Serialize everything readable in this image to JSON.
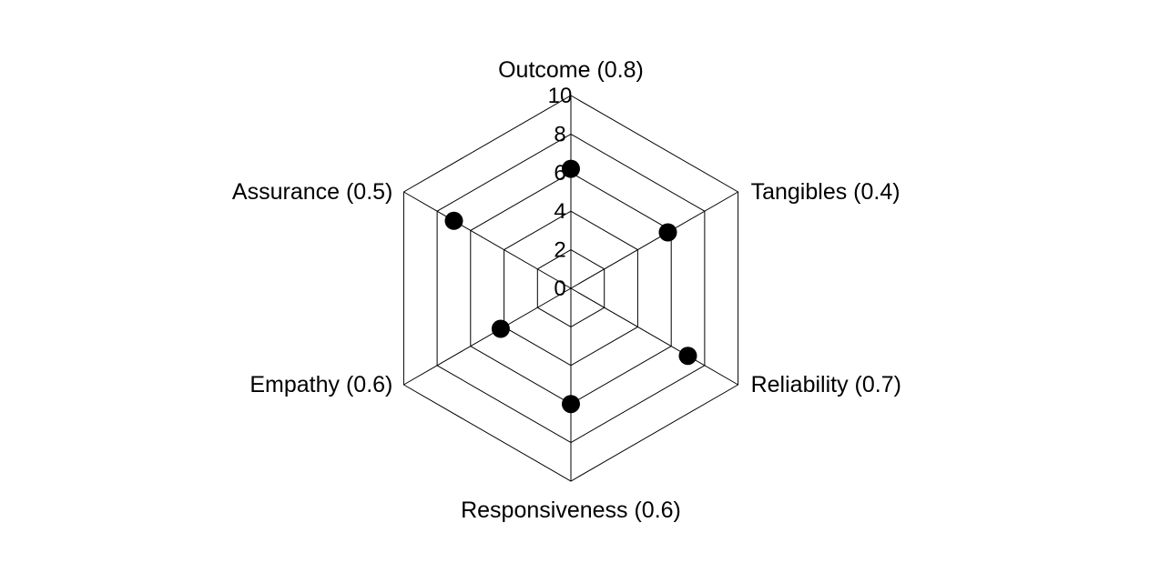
{
  "chart_data": {
    "type": "radar",
    "title": "",
    "categories": [
      "Outcome (0.8)",
      "Tangibles (0.4)",
      "Reliability (0.7)",
      "Responsiveness (0.6)",
      "Empathy (0.6)",
      "Assurance (0.5)"
    ],
    "values": [
      6.2,
      5.8,
      7.0,
      6.0,
      4.2,
      7.0
    ],
    "rlim": [
      0,
      10
    ],
    "ticks": [
      "0",
      "2",
      "4",
      "6",
      "8",
      "10"
    ],
    "grid": true,
    "legend": "none",
    "colors": {
      "line": "#000000",
      "marker": "#000000"
    }
  }
}
